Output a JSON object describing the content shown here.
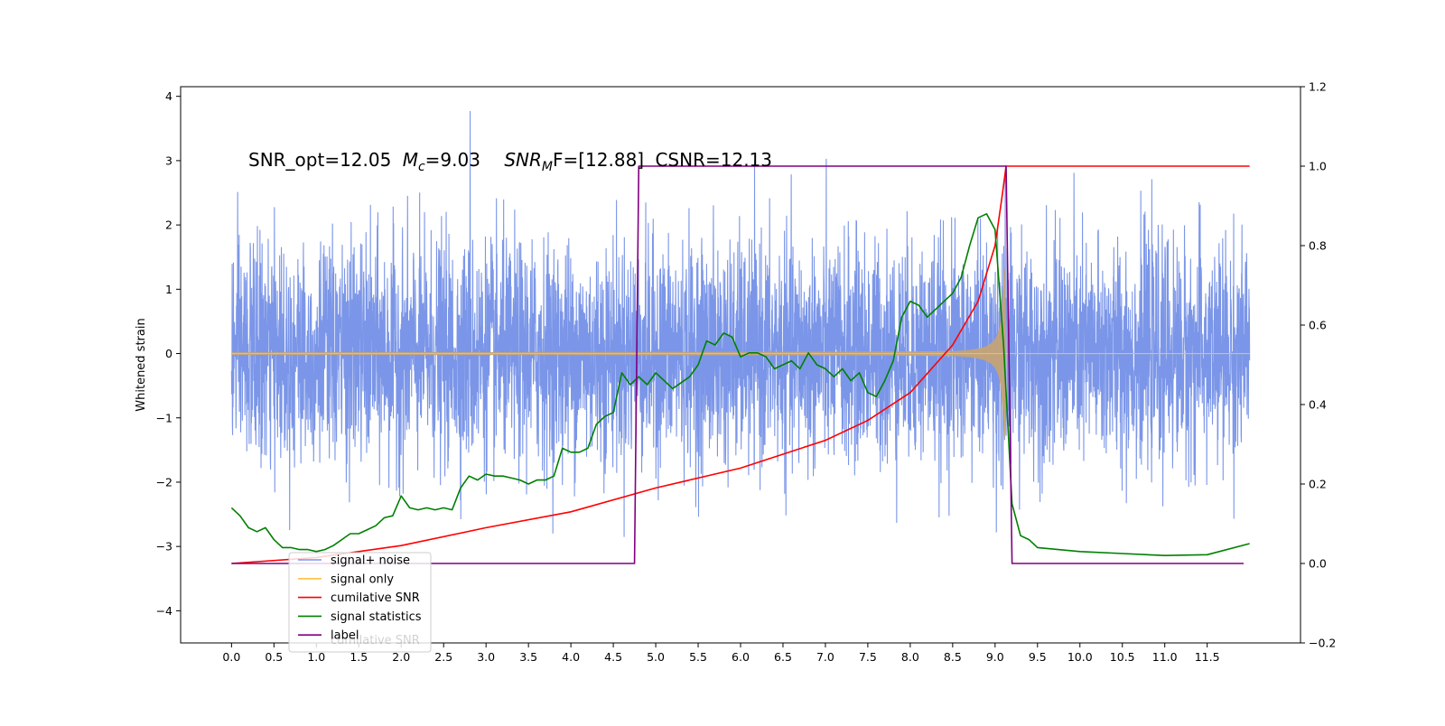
{
  "chart_data": {
    "type": "line",
    "annotation": {
      "snr_opt": "SNR_opt=12.05",
      "mc_symbol": "M",
      "mc_sub": "c",
      "mc_value": "=9.03",
      "snrmf_symbol": "SNR",
      "snrmf_sub": "M",
      "snrmf_tail": "F=[12.88]",
      "csnr": "CSNR=12.13"
    },
    "ylabel_left": "Whitened strain",
    "xlim": [
      -0.6,
      12.6
    ],
    "ylim_left": [
      -4.5,
      4.15
    ],
    "ylim_right": [
      -0.2,
      1.2
    ],
    "xticks": [
      "0.0",
      "0.5",
      "1.0",
      "1.5",
      "2.0",
      "2.5",
      "3.0",
      "3.5",
      "4.0",
      "4.5",
      "5.0",
      "5.5",
      "6.0",
      "6.5",
      "7.0",
      "7.5",
      "8.0",
      "8.5",
      "9.0",
      "9.5",
      "10.0",
      "10.5",
      "11.0",
      "11.5"
    ],
    "yticks_left": [
      "−4",
      "−3",
      "−2",
      "−1",
      "0",
      "1",
      "2",
      "3",
      "4"
    ],
    "yticks_right": [
      "−0.2",
      "0.0",
      "0.2",
      "0.4",
      "0.6",
      "0.8",
      "1.0",
      "1.2"
    ],
    "legend_position": "lower-left",
    "legend": [
      {
        "label": "signal+ noise",
        "color": "#7b96e8"
      },
      {
        "label": "signal only",
        "color": "#ffc04d"
      },
      {
        "label": "cumilative SNR",
        "color": "#ff0000"
      },
      {
        "label": "signal statistics",
        "color": "#008000"
      },
      {
        "label": "label",
        "color": "#800080"
      }
    ],
    "legend_ghost": "cumilative SNR",
    "series": [
      {
        "name": "signal+ noise",
        "axis": "left",
        "x_range": [
          0.0,
          12.0
        ],
        "noise_sigma": 0.85,
        "max_peak": 3.77
      },
      {
        "name": "signal only",
        "axis": "left",
        "x_range": [
          0.0,
          12.0
        ],
        "amplitude_start": 0.02,
        "amplitude_peak": 1.3,
        "merger_time": 9.13
      },
      {
        "name": "cumilative SNR",
        "axis": "right",
        "x": [
          0.0,
          1.0,
          2.0,
          3.0,
          4.0,
          5.0,
          6.0,
          6.5,
          7.0,
          7.5,
          8.0,
          8.5,
          8.8,
          9.0,
          9.08,
          9.13,
          12.0
        ],
        "y": [
          0.0,
          0.015,
          0.045,
          0.09,
          0.13,
          0.19,
          0.24,
          0.275,
          0.31,
          0.36,
          0.43,
          0.55,
          0.66,
          0.8,
          0.92,
          1.0,
          1.0
        ]
      },
      {
        "name": "signal statistics",
        "axis": "right",
        "x": [
          0.0,
          0.1,
          0.2,
          0.3,
          0.4,
          0.5,
          0.6,
          0.7,
          0.8,
          0.9,
          1.0,
          1.1,
          1.2,
          1.3,
          1.4,
          1.5,
          1.6,
          1.7,
          1.8,
          1.9,
          2.0,
          2.1,
          2.2,
          2.3,
          2.4,
          2.5,
          2.6,
          2.7,
          2.8,
          2.9,
          3.0,
          3.1,
          3.2,
          3.3,
          3.4,
          3.5,
          3.6,
          3.7,
          3.8,
          3.9,
          4.0,
          4.1,
          4.2,
          4.3,
          4.4,
          4.5,
          4.6,
          4.7,
          4.8,
          4.9,
          5.0,
          5.1,
          5.2,
          5.3,
          5.4,
          5.5,
          5.6,
          5.7,
          5.8,
          5.9,
          6.0,
          6.1,
          6.2,
          6.3,
          6.4,
          6.5,
          6.6,
          6.7,
          6.8,
          6.9,
          7.0,
          7.1,
          7.2,
          7.3,
          7.4,
          7.5,
          7.6,
          7.7,
          7.8,
          7.9,
          8.0,
          8.1,
          8.2,
          8.3,
          8.4,
          8.5,
          8.6,
          8.7,
          8.8,
          8.9,
          9.0,
          9.1,
          9.2,
          9.3,
          9.4,
          9.5,
          10.0,
          10.5,
          11.0,
          11.5,
          12.0
        ],
        "y": [
          0.14,
          0.12,
          0.09,
          0.08,
          0.09,
          0.06,
          0.04,
          0.04,
          0.035,
          0.035,
          0.03,
          0.035,
          0.045,
          0.06,
          0.075,
          0.075,
          0.085,
          0.095,
          0.115,
          0.12,
          0.17,
          0.14,
          0.135,
          0.14,
          0.135,
          0.14,
          0.135,
          0.19,
          0.22,
          0.21,
          0.225,
          0.22,
          0.22,
          0.215,
          0.21,
          0.2,
          0.21,
          0.21,
          0.22,
          0.29,
          0.28,
          0.28,
          0.29,
          0.35,
          0.37,
          0.38,
          0.48,
          0.45,
          0.47,
          0.45,
          0.48,
          0.46,
          0.44,
          0.455,
          0.47,
          0.5,
          0.56,
          0.55,
          0.58,
          0.57,
          0.52,
          0.53,
          0.53,
          0.52,
          0.49,
          0.5,
          0.51,
          0.49,
          0.53,
          0.5,
          0.49,
          0.47,
          0.49,
          0.46,
          0.48,
          0.43,
          0.42,
          0.46,
          0.51,
          0.62,
          0.66,
          0.65,
          0.62,
          0.64,
          0.66,
          0.68,
          0.72,
          0.8,
          0.87,
          0.88,
          0.84,
          0.55,
          0.15,
          0.07,
          0.06,
          0.04,
          0.03,
          0.025,
          0.02,
          0.022,
          0.05
        ]
      },
      {
        "name": "label",
        "axis": "right",
        "x": [
          0.0,
          4.75,
          4.8,
          9.13,
          9.2,
          11.93
        ],
        "y": [
          0.0,
          0.0,
          1.0,
          1.0,
          0.0,
          0.0
        ]
      }
    ]
  }
}
